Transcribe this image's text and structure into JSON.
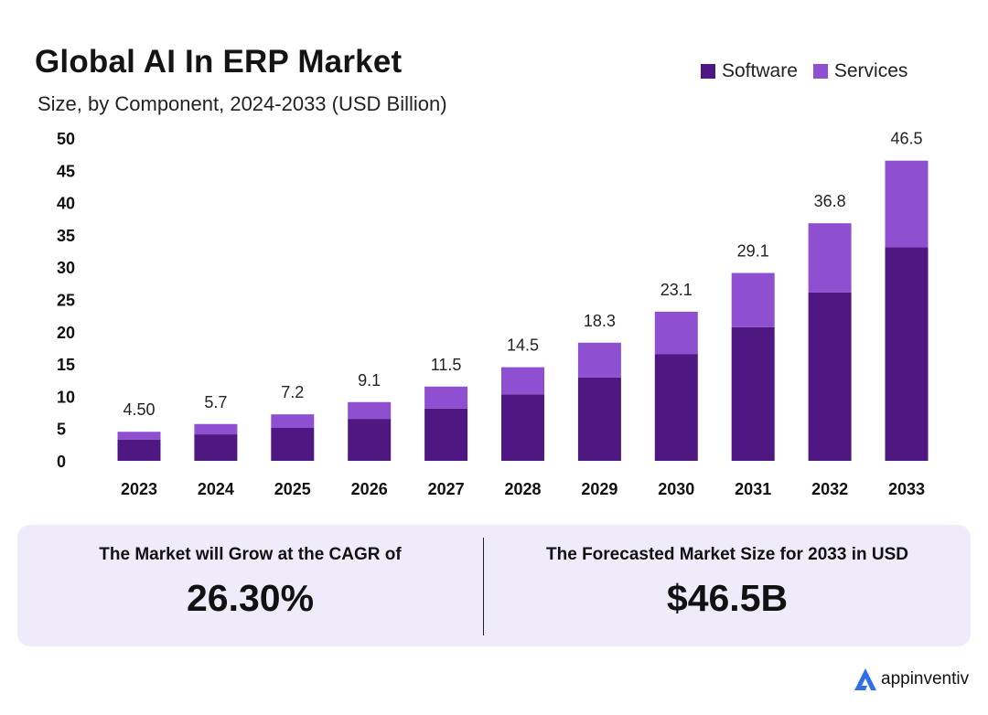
{
  "chart_data": {
    "type": "bar",
    "stacked": true,
    "title": "Global AI In ERP Market",
    "subtitle": "Size, by Component, 2024-2033 (USD Billion)",
    "categories": [
      "2023",
      "2024",
      "2025",
      "2026",
      "2027",
      "2028",
      "2029",
      "2030",
      "2031",
      "2032",
      "2033"
    ],
    "series": [
      {
        "name": "Software",
        "color": "#4e1782",
        "values": [
          3.3,
          4.1,
          5.1,
          6.5,
          8.1,
          10.3,
          12.9,
          16.5,
          20.7,
          26.1,
          33.1
        ]
      },
      {
        "name": "Services",
        "color": "#8e4fd1",
        "values": [
          1.2,
          1.6,
          2.1,
          2.6,
          3.4,
          4.2,
          5.4,
          6.6,
          8.4,
          10.7,
          13.4
        ]
      }
    ],
    "totals_labels": [
      "4.50",
      "5.7",
      "7.2",
      "9.1",
      "11.5",
      "14.5",
      "18.3",
      "23.1",
      "29.1",
      "36.8",
      "46.5"
    ],
    "totals": [
      4.5,
      5.7,
      7.2,
      9.1,
      11.5,
      14.5,
      18.3,
      23.1,
      29.1,
      36.8,
      46.5
    ],
    "y_ticks": [
      "0",
      "5",
      "10",
      "15",
      "20",
      "25",
      "30",
      "35",
      "40",
      "45",
      "50"
    ],
    "ylim": [
      0,
      50
    ],
    "xlabel": "",
    "ylabel": "",
    "legend_position": "top-right",
    "grid": false
  },
  "stats": {
    "cagr_label": "The Market will Grow at the CAGR of",
    "cagr_value": "26.30%",
    "forecast_label": "The Forecasted Market Size for 2033 in USD",
    "forecast_value": "$46.5B"
  },
  "brand": {
    "name": "appinventiv",
    "logo_color": "#2f6fe8"
  }
}
